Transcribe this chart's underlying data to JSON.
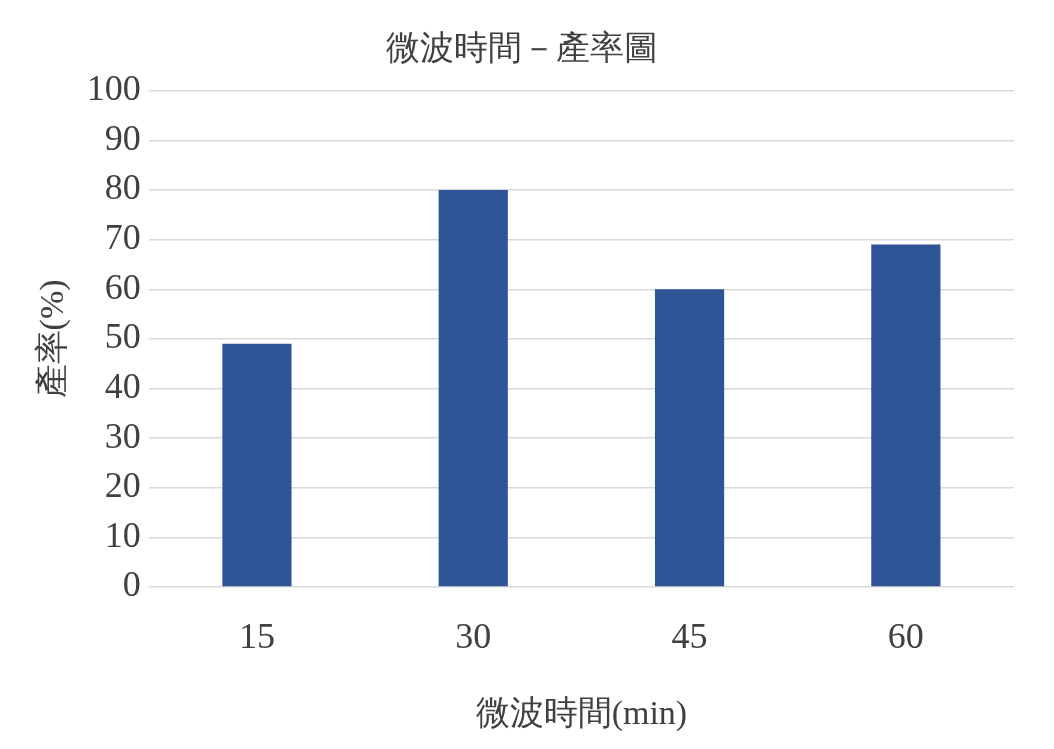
{
  "chart_data": {
    "type": "bar",
    "title": "微波時間－產率圖",
    "xlabel": "微波時間(min)",
    "ylabel": "產率(%)",
    "categories": [
      "15",
      "30",
      "45",
      "60"
    ],
    "values": [
      49,
      80,
      60,
      69
    ],
    "color": "#2f5597",
    "ylim": [
      0,
      100
    ],
    "yticks": [
      0,
      10,
      20,
      30,
      40,
      50,
      60,
      70,
      80,
      90,
      100
    ],
    "grid": "y",
    "legend": false
  }
}
